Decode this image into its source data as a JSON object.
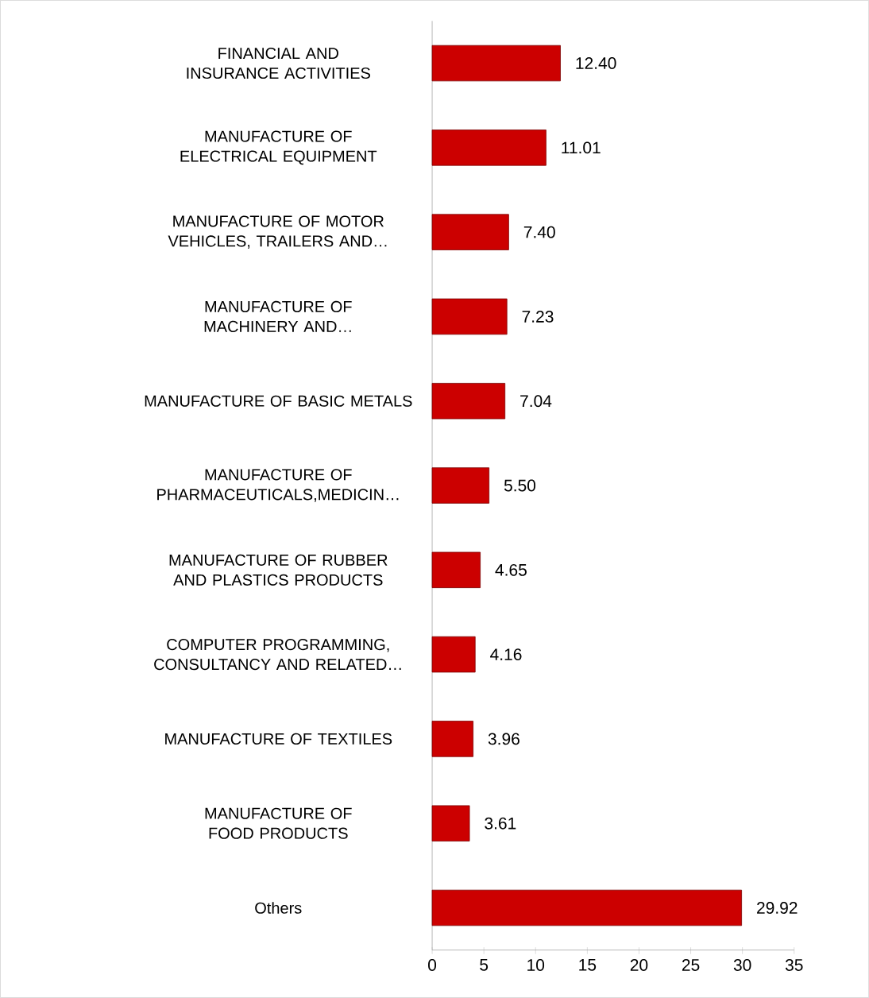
{
  "chart_data": {
    "type": "bar",
    "orientation": "horizontal",
    "categories": [
      "FINANCIAL AND INSURANCE ACTIVITIES",
      "MANUFACTURE OF ELECTRICAL EQUIPMENT",
      "MANUFACTURE OF MOTOR VEHICLES, TRAILERS AND…",
      "MANUFACTURE OF MACHINERY AND…",
      "MANUFACTURE OF BASIC METALS",
      "MANUFACTURE OF PHARMACEUTICALS,MEDICIN…",
      "MANUFACTURE OF RUBBER AND PLASTICS PRODUCTS",
      "COMPUTER PROGRAMMING, CONSULTANCY AND RELATED…",
      "MANUFACTURE OF TEXTILES",
      "MANUFACTURE OF FOOD PRODUCTS",
      "Others"
    ],
    "values": [
      12.4,
      11.01,
      7.4,
      7.23,
      7.04,
      5.5,
      4.65,
      4.16,
      3.96,
      3.61,
      29.92
    ],
    "value_labels": [
      "12.40",
      "11.01",
      "7.40",
      "7.23",
      "7.04",
      "5.50",
      "4.65",
      "4.16",
      "3.96",
      "3.61",
      "29.92"
    ],
    "color": "#cc0000",
    "xlim": [
      0,
      35
    ],
    "xticks": [
      0,
      5,
      10,
      15,
      20,
      25,
      30,
      35
    ],
    "grid": false
  }
}
